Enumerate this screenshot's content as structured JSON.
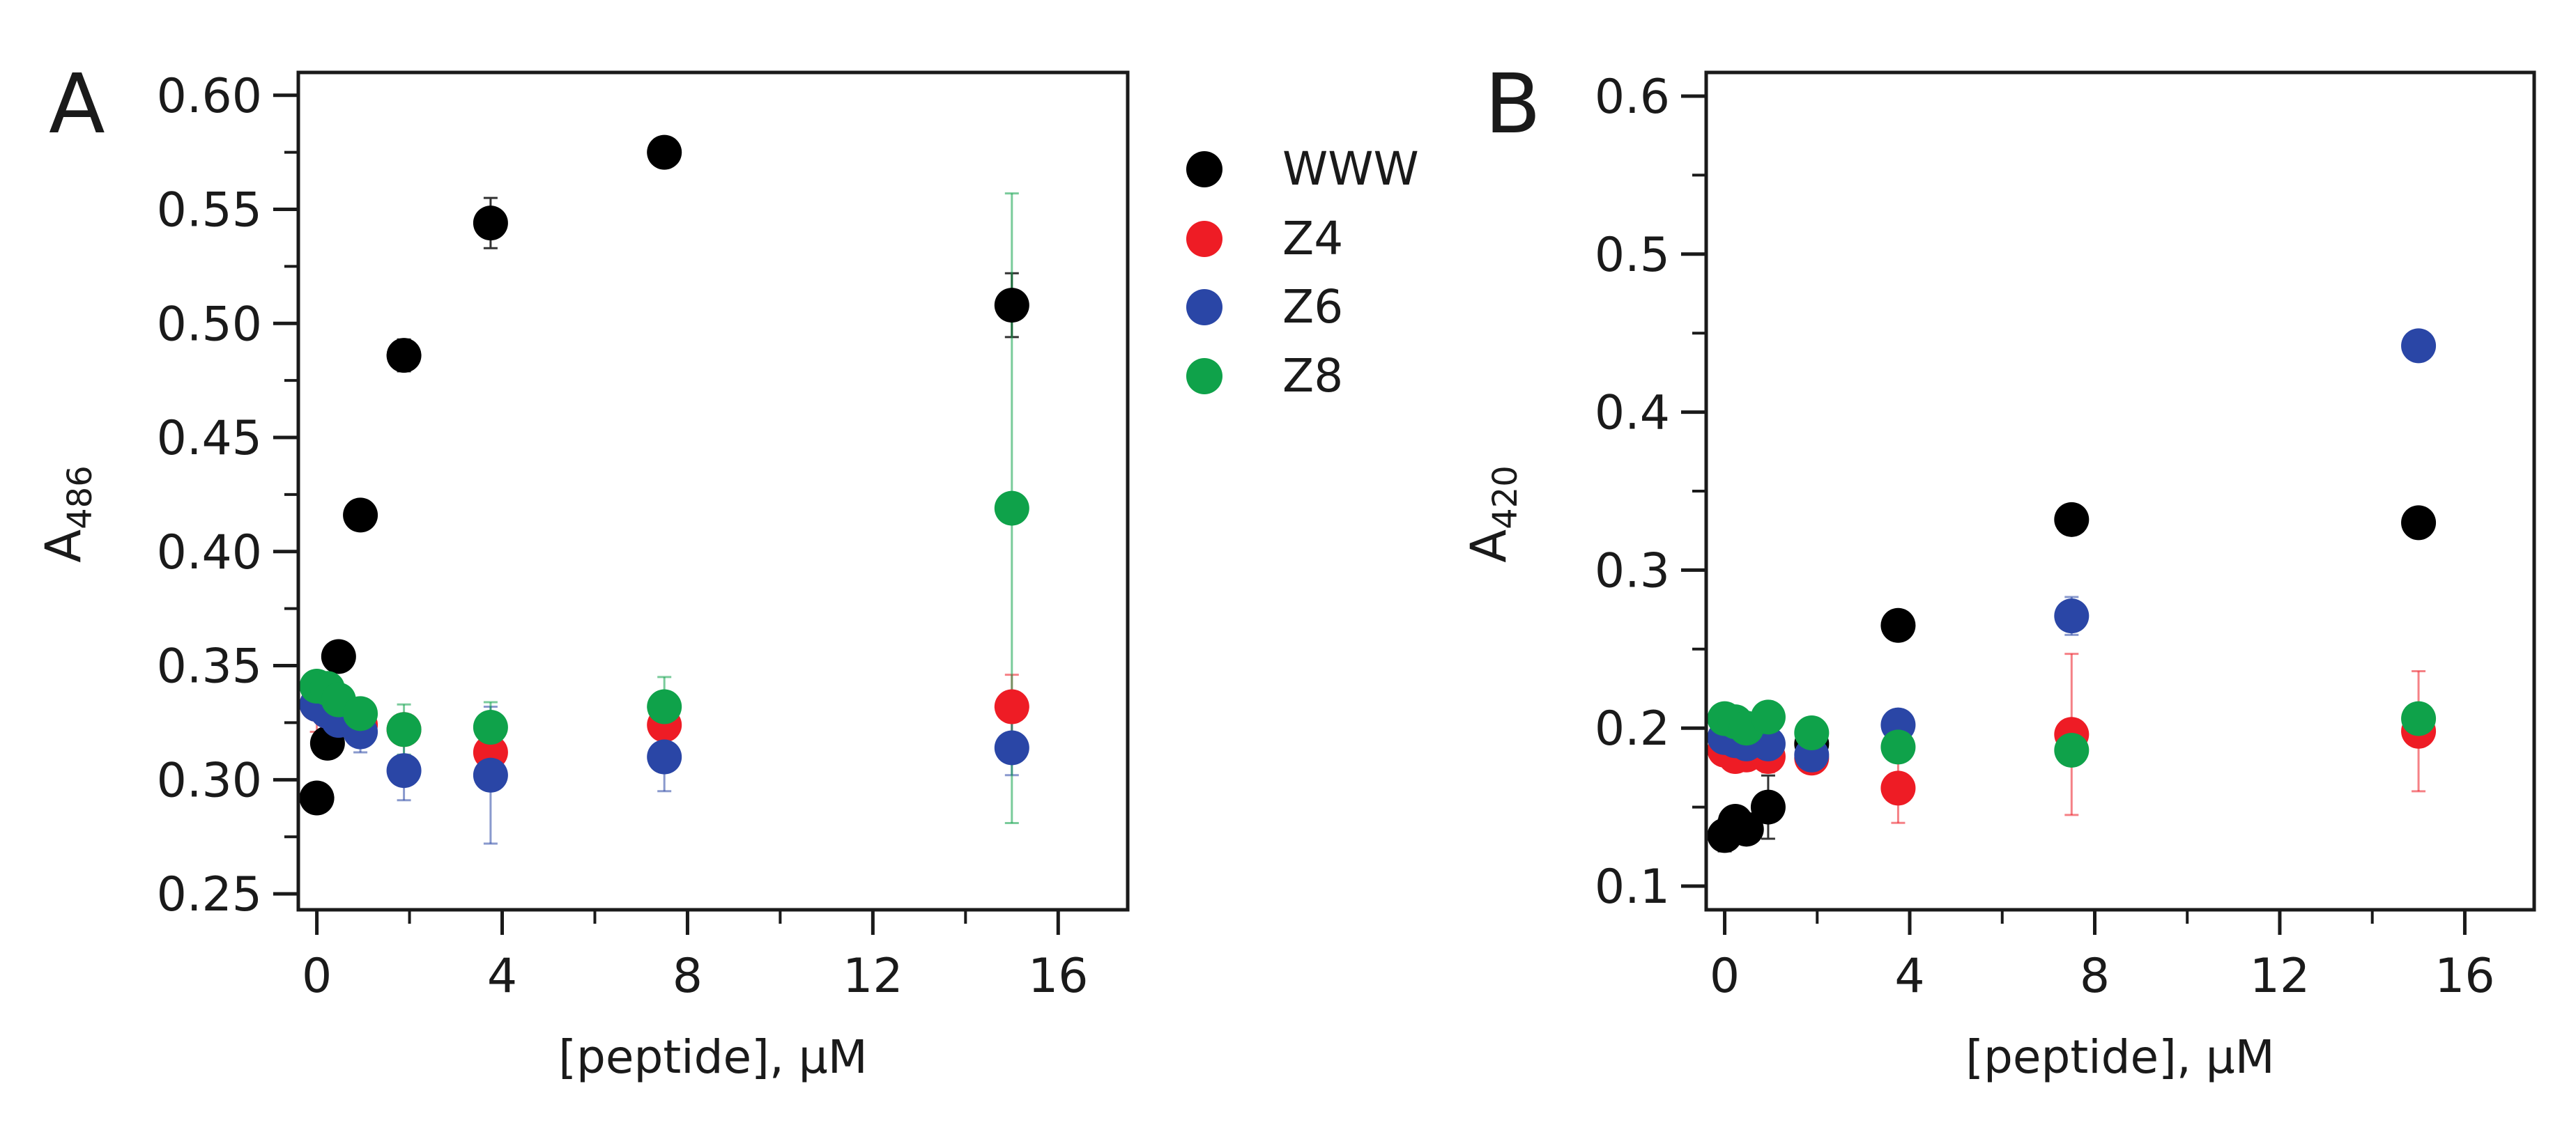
{
  "chart_data": [
    {
      "panel_label": "A",
      "type": "scatter",
      "xlabel": "[peptide], μM",
      "ylabel_main": "A",
      "ylabel_sub": "486",
      "xlim": [
        -0.4,
        17.5
      ],
      "ylim": [
        0.243,
        0.61
      ],
      "xticks": [
        0,
        4,
        8,
        12,
        16
      ],
      "xtick_labels": [
        "0",
        "4",
        "8",
        "12",
        "16"
      ],
      "xminor": [
        2,
        6,
        10,
        14
      ],
      "yticks": [
        0.25,
        0.3,
        0.35,
        0.4,
        0.45,
        0.5,
        0.55,
        0.6
      ],
      "ytick_labels": [
        "0.25",
        "0.30",
        "0.35",
        "0.40",
        "0.45",
        "0.50",
        "0.55",
        "0.60"
      ],
      "yminor": [
        0.275,
        0.325,
        0.375,
        0.425,
        0.475,
        0.525,
        0.575
      ],
      "series": [
        {
          "name": "WWW",
          "color": "#000000",
          "x": [
            0,
            0.23,
            0.47,
            0.94,
            1.88,
            3.75,
            7.5,
            15
          ],
          "y": [
            0.292,
            0.316,
            0.354,
            0.416,
            0.486,
            0.544,
            0.575,
            0.508
          ],
          "err": [
            0,
            0,
            0,
            0,
            0.007,
            0.011,
            0,
            0.014
          ]
        },
        {
          "name": "Z4",
          "color": "#ee1c25",
          "x": [
            0,
            0.23,
            0.47,
            0.94,
            1.88,
            3.75,
            7.5,
            15
          ],
          "y": [
            0.333,
            0.33,
            0.329,
            0.324,
            0.322,
            0.312,
            0.324,
            0.332
          ],
          "err": [
            0.012,
            0,
            0,
            0,
            0,
            0.008,
            0,
            0.014
          ]
        },
        {
          "name": "Z6",
          "color": "#2a46a6",
          "x": [
            0,
            0.23,
            0.47,
            0.94,
            1.88,
            3.75,
            7.5,
            15
          ],
          "y": [
            0.333,
            0.33,
            0.326,
            0.321,
            0.304,
            0.302,
            0.31,
            0.314
          ],
          "err": [
            0,
            0,
            0,
            0.009,
            0.013,
            0.03,
            0.015,
            0.012
          ]
        },
        {
          "name": "Z8",
          "color": "#0fa24a",
          "x": [
            0,
            0.23,
            0.47,
            0.94,
            1.88,
            3.75,
            7.5,
            15
          ],
          "y": [
            0.341,
            0.34,
            0.335,
            0.329,
            0.322,
            0.323,
            0.332,
            0.419
          ],
          "err": [
            0,
            0,
            0,
            0,
            0.011,
            0.011,
            0.013,
            0.138
          ]
        }
      ],
      "legend": {
        "placement": "right of panel",
        "entries": [
          "WWW",
          "Z4",
          "Z6",
          "Z8"
        ]
      }
    },
    {
      "panel_label": "B",
      "type": "scatter",
      "xlabel": "[peptide], μM",
      "ylabel_main": "A",
      "ylabel_sub": "420",
      "xlim": [
        -0.4,
        17.5
      ],
      "ylim": [
        0.085,
        0.615
      ],
      "xticks": [
        0,
        4,
        8,
        12,
        16
      ],
      "xtick_labels": [
        "0",
        "4",
        "8",
        "12",
        "16"
      ],
      "xminor": [
        2,
        6,
        10,
        14
      ],
      "yticks": [
        0.1,
        0.2,
        0.3,
        0.4,
        0.5,
        0.6
      ],
      "ytick_labels": [
        "0.1",
        "0.2",
        "0.3",
        "0.4",
        "0.5",
        "0.6"
      ],
      "yminor": [
        0.15,
        0.25,
        0.35,
        0.45,
        0.55
      ],
      "series": [
        {
          "name": "WWW",
          "color": "#000000",
          "x": [
            0,
            0.23,
            0.47,
            0.94,
            1.88,
            3.75,
            7.5,
            15
          ],
          "y": [
            0.132,
            0.141,
            0.136,
            0.15,
            0.19,
            0.265,
            0.332,
            0.33
          ],
          "err": [
            0.01,
            0,
            0,
            0.02,
            0,
            0.008,
            0,
            0
          ]
        },
        {
          "name": "Z4",
          "color": "#ee1c25",
          "x": [
            0,
            0.23,
            0.47,
            0.94,
            1.88,
            3.75,
            7.5,
            15
          ],
          "y": [
            0.186,
            0.182,
            0.183,
            0.182,
            0.181,
            0.162,
            0.196,
            0.198
          ],
          "err": [
            0,
            0,
            0,
            0.01,
            0.008,
            0.022,
            0.051,
            0.038
          ]
        },
        {
          "name": "Z6",
          "color": "#2a46a6",
          "x": [
            0,
            0.23,
            0.47,
            0.94,
            1.88,
            3.75,
            7.5,
            15
          ],
          "y": [
            0.194,
            0.192,
            0.19,
            0.19,
            0.183,
            0.202,
            0.271,
            0.442
          ],
          "err": [
            0,
            0,
            0,
            0,
            0,
            0,
            0.012,
            0
          ]
        },
        {
          "name": "Z8",
          "color": "#0fa24a",
          "x": [
            0,
            0.23,
            0.47,
            0.94,
            1.88,
            3.75,
            7.5,
            15
          ],
          "y": [
            0.206,
            0.204,
            0.2,
            0.207,
            0.197,
            0.188,
            0.186,
            0.206
          ],
          "err": [
            0,
            0,
            0,
            0,
            0,
            0,
            0,
            0
          ]
        }
      ]
    }
  ]
}
